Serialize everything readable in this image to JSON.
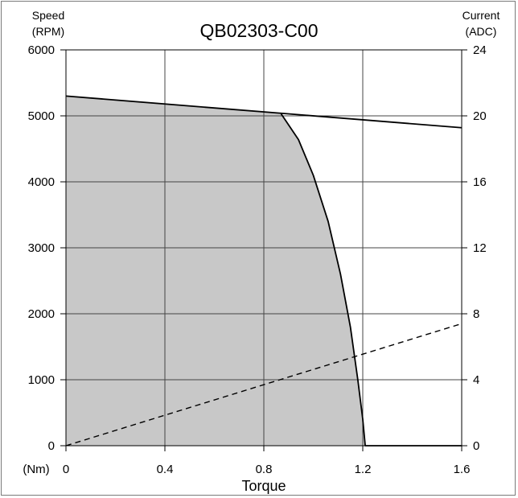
{
  "chart_data": {
    "type": "area",
    "title": "QB02303-C00",
    "xlabel": "Torque",
    "x_unit": "(Nm)",
    "ylabel_left": [
      "Speed",
      "(RPM)"
    ],
    "ylabel_right": [
      "Current",
      "(ADC)"
    ],
    "xlim": [
      0,
      1.6
    ],
    "ylim_left": [
      0,
      6000
    ],
    "ylim_right": [
      0,
      24
    ],
    "x_ticks": [
      "0",
      "0.4",
      "0.8",
      "1.2",
      "1.6"
    ],
    "y_ticks_left": [
      "0",
      "1000",
      "2000",
      "3000",
      "4000",
      "5000",
      "6000"
    ],
    "y_ticks_right": [
      "0",
      "4",
      "8",
      "12",
      "16",
      "20",
      "24"
    ],
    "grid": true,
    "series": [
      {
        "style": "solid",
        "axis": "left",
        "points": [
          [
            0,
            5300
          ],
          [
            1.6,
            4820
          ]
        ]
      },
      {
        "style": "solid",
        "axis": "left",
        "points": [
          [
            0.87,
            5030
          ],
          [
            0.94,
            4640
          ],
          [
            1.0,
            4100
          ],
          [
            1.06,
            3400
          ],
          [
            1.11,
            2600
          ],
          [
            1.15,
            1800
          ],
          [
            1.18,
            1000
          ],
          [
            1.2,
            400
          ],
          [
            1.21,
            0
          ],
          [
            1.6,
            0
          ]
        ]
      },
      {
        "style": "dashed",
        "axis": "right",
        "points": [
          [
            0,
            0
          ],
          [
            1.6,
            7.4
          ]
        ]
      }
    ],
    "shaded_region": {
      "color": "#c8c8c8",
      "points": [
        [
          0,
          0
        ],
        [
          0,
          5300
        ],
        [
          0.87,
          5030
        ],
        [
          0.94,
          4640
        ],
        [
          1.0,
          4100
        ],
        [
          1.06,
          3400
        ],
        [
          1.11,
          2600
        ],
        [
          1.15,
          1800
        ],
        [
          1.18,
          1000
        ],
        [
          1.2,
          400
        ],
        [
          1.21,
          0
        ]
      ]
    }
  }
}
